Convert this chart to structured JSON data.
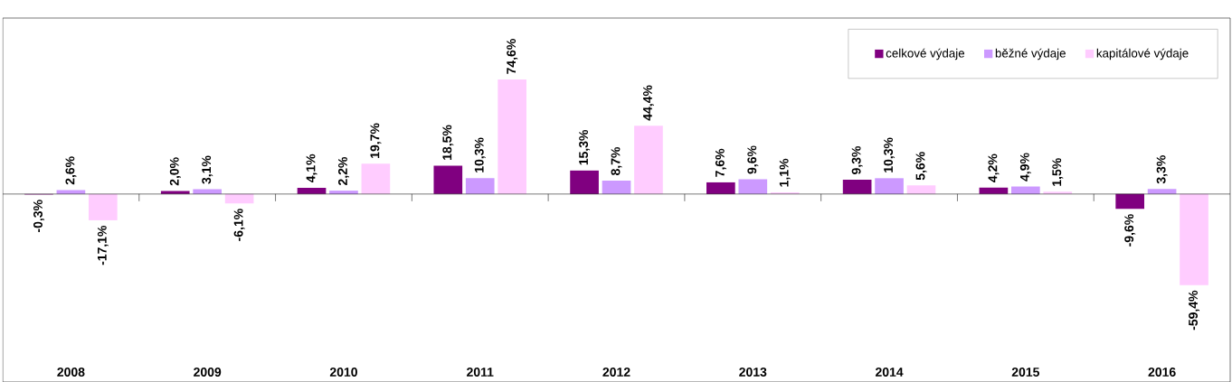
{
  "chart_data": {
    "type": "bar",
    "categories": [
      "2008",
      "2009",
      "2010",
      "2011",
      "2012",
      "2013",
      "2014",
      "2015",
      "2016"
    ],
    "series": [
      {
        "name": "celkové výdaje",
        "color": "#800080",
        "values": [
          -0.3,
          2.0,
          4.1,
          18.5,
          15.3,
          7.6,
          9.3,
          4.2,
          -9.6
        ],
        "value_labels": [
          "-0,3%",
          "2,0%",
          "4,1%",
          "18,5%",
          "15,3%",
          "7,6%",
          "9,3%",
          "4,2%",
          "-9,6%"
        ]
      },
      {
        "name": "běžné výdaje",
        "color": "#cc99ff",
        "values": [
          2.6,
          3.1,
          2.2,
          10.3,
          8.7,
          9.6,
          10.3,
          4.9,
          3.3
        ],
        "value_labels": [
          "2,6%",
          "3,1%",
          "2,2%",
          "10,3%",
          "8,7%",
          "9,6%",
          "10,3%",
          "4,9%",
          "3,3%"
        ]
      },
      {
        "name": "kapitálové výdaje",
        "color": "#ffccff",
        "values": [
          -17.1,
          -6.1,
          19.7,
          74.6,
          44.4,
          1.1,
          5.6,
          1.5,
          -59.4
        ],
        "value_labels": [
          "-17,1%",
          "-6,1%",
          "19,7%",
          "74,6%",
          "44,4%",
          "1,1%",
          "5,6%",
          "1,5%",
          "-59,4%"
        ]
      }
    ],
    "legend": "top right",
    "grid": false
  }
}
